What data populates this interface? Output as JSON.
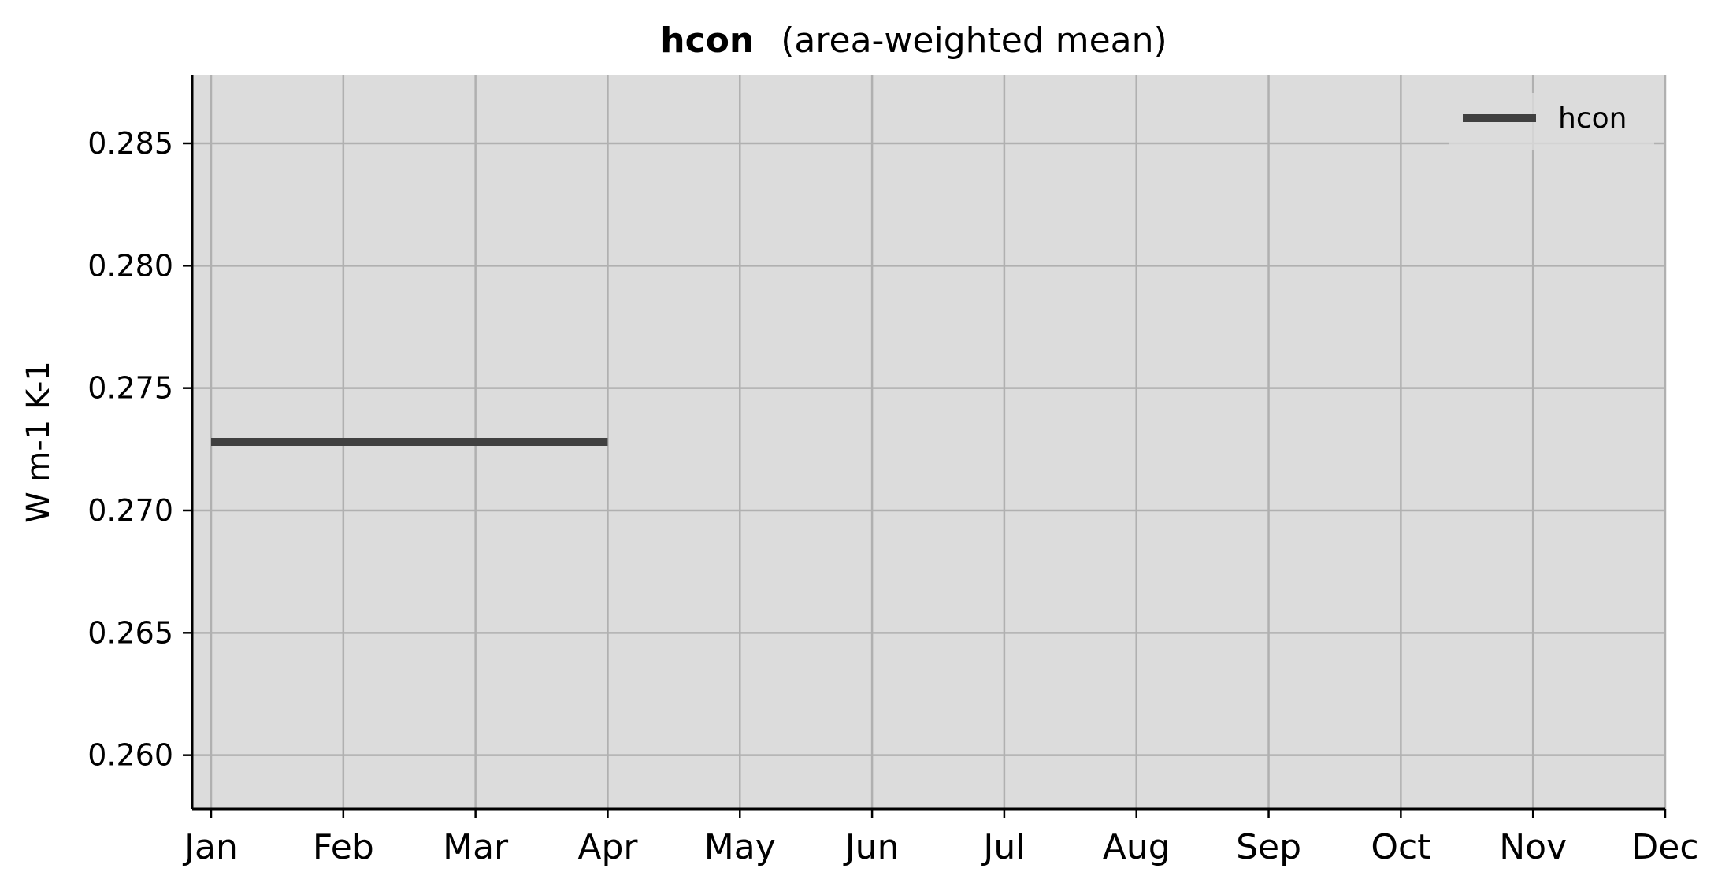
{
  "chart_data": {
    "type": "line",
    "title_bold": "hcon",
    "title_rest": "(area-weighted mean)",
    "xlabel": "",
    "ylabel": "W m-1 K-1",
    "x_ticks": [
      "Jan",
      "Feb",
      "Mar",
      "Apr",
      "May",
      "Jun",
      "Jul",
      "Aug",
      "Sep",
      "Oct",
      "Nov",
      "Dec"
    ],
    "xlim": [
      0,
      11
    ],
    "y_ticks": [
      0.26,
      0.265,
      0.27,
      0.275,
      0.28,
      0.285
    ],
    "ylim": [
      0.2578,
      0.2878
    ],
    "grid": true,
    "legend_position": "top-right",
    "series": [
      {
        "name": "hcon",
        "color": "#404040",
        "x": [
          "Jan",
          "Feb",
          "Mar",
          "Apr"
        ],
        "values": [
          0.2728,
          0.2728,
          0.2728,
          0.2728
        ]
      }
    ],
    "colors": {
      "plot_background": "#dcdcdc",
      "grid": "#b0b0b0",
      "axis": "#000000"
    }
  }
}
